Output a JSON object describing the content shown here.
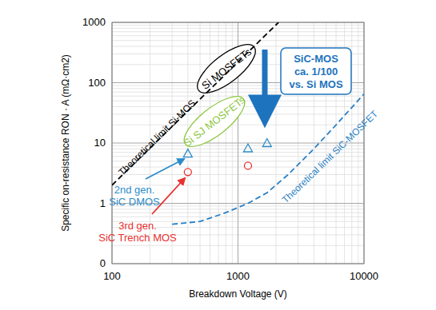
{
  "chart_data": {
    "type": "line",
    "xlabel": "Breakdown Voltage (V)",
    "ylabel": "Specific on-resistance RON · A (mΩ·cm2)",
    "log": true,
    "grid": true,
    "xlim": [
      100,
      10000
    ],
    "xticks": [
      100,
      1000,
      10000
    ],
    "ylim": [
      0.1,
      1000
    ],
    "yticks": [
      {
        "value": 0.1,
        "label": "0"
      },
      1,
      10,
      100,
      1000
    ],
    "series": [
      {
        "name": "Theoretical limit Si-MOS",
        "type": "line",
        "line_style": "dashed",
        "color": "#000000",
        "x": [
          100,
          2100
        ],
        "values": [
          2,
          1000
        ]
      },
      {
        "name": "Theoretical limit SiC-MOSFET",
        "type": "line",
        "line_style": "dashed",
        "color": "#2a7fc4",
        "x": [
          300,
          500,
          800,
          1200,
          1700,
          2500,
          4000,
          6000,
          10000
        ],
        "values": [
          0.45,
          0.5,
          0.7,
          1.0,
          1.5,
          3,
          8,
          20,
          65
        ]
      },
      {
        "name": "2nd gen.\nSiC DMOS",
        "type": "scatter",
        "marker": "triangle",
        "color": "#2e8bc9",
        "x": [
          400,
          1200,
          1700
        ],
        "values": [
          6.7,
          8.2,
          10
        ]
      },
      {
        "name": "3rd gen.\nSiC Trench MOS",
        "type": "scatter",
        "marker": "circle",
        "color": "#e8312f",
        "x": [
          400,
          1200
        ],
        "values": [
          3.3,
          4.2
        ]
      }
    ],
    "annotations": [
      {
        "text": "Si MOSFETs",
        "color": "#000000"
      },
      {
        "text": "Si SJ MOSFETs",
        "color": "#8dc63f"
      },
      {
        "text": "SiC-MOS\nca. 1/100\nvs. Si MOS",
        "color": "#1e73be"
      }
    ]
  }
}
